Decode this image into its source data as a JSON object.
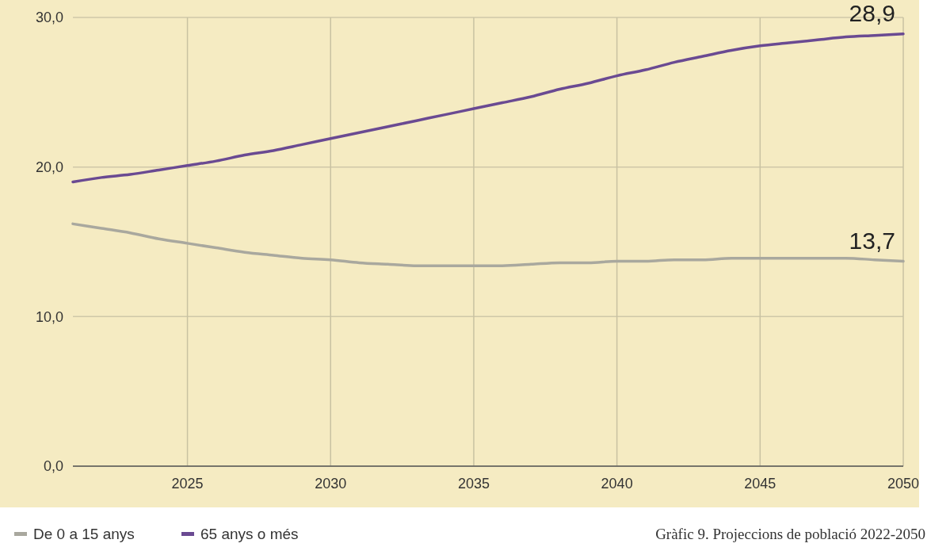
{
  "chart_data": {
    "type": "line",
    "x": [
      2021,
      2022,
      2023,
      2024,
      2025,
      2026,
      2027,
      2028,
      2029,
      2030,
      2031,
      2032,
      2033,
      2034,
      2035,
      2036,
      2037,
      2038,
      2039,
      2040,
      2041,
      2042,
      2043,
      2044,
      2045,
      2046,
      2047,
      2048,
      2049,
      2050
    ],
    "series": [
      {
        "name": "De 0 a 15 anys",
        "color": "#a9a89e",
        "values": [
          16.2,
          15.9,
          15.6,
          15.2,
          14.9,
          14.6,
          14.3,
          14.1,
          13.9,
          13.8,
          13.6,
          13.5,
          13.4,
          13.4,
          13.4,
          13.4,
          13.5,
          13.6,
          13.6,
          13.7,
          13.7,
          13.8,
          13.8,
          13.9,
          13.9,
          13.9,
          13.9,
          13.9,
          13.8,
          13.7
        ]
      },
      {
        "name": "65 anys o més",
        "color": "#6a4a92",
        "values": [
          19.0,
          19.3,
          19.5,
          19.8,
          20.1,
          20.4,
          20.8,
          21.1,
          21.5,
          21.9,
          22.3,
          22.7,
          23.1,
          23.5,
          23.9,
          24.3,
          24.7,
          25.2,
          25.6,
          26.1,
          26.5,
          27.0,
          27.4,
          27.8,
          28.1,
          28.3,
          28.5,
          28.7,
          28.8,
          28.9
        ]
      }
    ],
    "xlim": [
      2021,
      2050
    ],
    "xticks": [
      2025,
      2030,
      2035,
      2040,
      2045,
      2050
    ],
    "ylim": [
      0,
      30
    ],
    "yticks": [
      {
        "value": 0,
        "label": "0,0"
      },
      {
        "value": 10,
        "label": "10,0"
      },
      {
        "value": 20,
        "label": "20,0"
      },
      {
        "value": 30,
        "label": "30,0"
      }
    ],
    "grid": true,
    "legend": "bottom left",
    "marker": "none",
    "line_style": "solid",
    "annotations": [
      {
        "text": "28,9",
        "x": 2050,
        "y": 28.9
      },
      {
        "text": "13,7",
        "x": 2050,
        "y": 13.7
      },
      "Gràfic 9. Projeccions de població 2022-2050"
    ]
  }
}
